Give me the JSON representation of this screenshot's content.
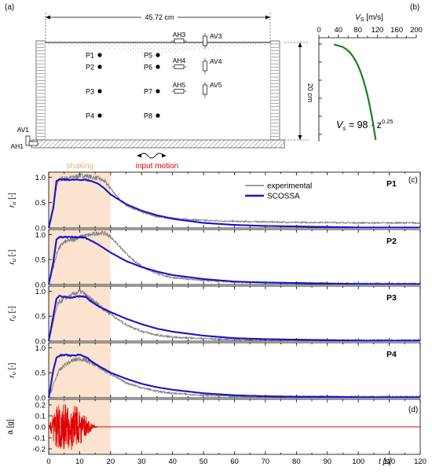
{
  "panels": {
    "a": "(a)",
    "b": "(b)",
    "c": "(c)",
    "d": "(d)"
  },
  "diagram": {
    "width_label": "45.72 cm",
    "height_label": "20 cm",
    "input_motion": "input motion",
    "sensors": {
      "pore_pressure": [
        "P1",
        "P2",
        "P3",
        "P4",
        "P5",
        "P6",
        "P7",
        "P8"
      ],
      "horizontal_acc": [
        "AH1",
        "AH3",
        "AH4",
        "AH5"
      ],
      "vertical_acc": [
        "AV1",
        "AV3",
        "AV4",
        "AV5"
      ]
    }
  },
  "vs_profile": {
    "axis_title_main": "V",
    "axis_title_sub": "S",
    "axis_unit": " [m/s]",
    "ticks": [
      "0",
      "40",
      "80",
      "120",
      "160",
      "200"
    ],
    "equation": {
      "lhs": "V",
      "lhs_sub": "s",
      "rhs": " = 98 · z",
      "exp": "0.25"
    },
    "line_color": "#1a7f1a"
  },
  "colors": {
    "experimental": "#808080",
    "scossa": "#1515c8",
    "acceleration": "#e00000",
    "shaking_band": "#fbe3cf",
    "shaking_label": "#f0a878",
    "input_motion_label": "#e00000"
  },
  "labels": {
    "shaking": "shaking",
    "t_axis": "t [s]",
    "ru_main": "r",
    "ru_sub": "u",
    "ru_unit": " [-]",
    "a_axis": "a [g]"
  },
  "chart_data": [
    {
      "type": "line",
      "name": "P1",
      "xlim": [
        0,
        120
      ],
      "ylim": [
        0,
        1.1
      ],
      "yticks": [
        "0.0",
        "0.5",
        "1.0"
      ],
      "shaking_interval": [
        0,
        20
      ],
      "series": [
        {
          "name": "experimental",
          "x": [
            0,
            1.5,
            2.5,
            3.5,
            5,
            8,
            10,
            12,
            14,
            16,
            18,
            20,
            22,
            25,
            30,
            35,
            40,
            50,
            60,
            70,
            80,
            90,
            100,
            110,
            120
          ],
          "y": [
            0,
            0.45,
            0.8,
            0.97,
            0.98,
            1.0,
            1.03,
            1.03,
            1.0,
            0.98,
            0.92,
            0.78,
            0.62,
            0.45,
            0.31,
            0.23,
            0.19,
            0.15,
            0.13,
            0.12,
            0.11,
            0.11,
            0.1,
            0.1,
            0.1
          ]
        },
        {
          "name": "SCOSSA",
          "x": [
            0,
            1.5,
            2.5,
            3.5,
            6,
            10,
            12,
            14,
            16,
            18,
            20,
            25,
            30,
            35,
            40,
            50,
            60,
            70,
            80,
            90,
            100,
            110,
            120
          ],
          "y": [
            0,
            0.4,
            0.93,
            0.95,
            0.95,
            0.95,
            0.95,
            0.92,
            0.87,
            0.78,
            0.66,
            0.47,
            0.34,
            0.25,
            0.18,
            0.1,
            0.06,
            0.04,
            0.03,
            0.02,
            0.01,
            0.01,
            0.01
          ]
        }
      ]
    },
    {
      "type": "line",
      "name": "P2",
      "xlim": [
        0,
        120
      ],
      "ylim": [
        0,
        1.1
      ],
      "yticks": [
        "0.0",
        "0.5",
        "1.0"
      ],
      "shaking_interval": [
        0,
        20
      ],
      "series": [
        {
          "name": "experimental",
          "x": [
            0,
            1.5,
            3,
            5,
            8,
            10,
            12,
            14,
            16,
            17.5,
            19,
            20,
            22,
            25,
            28,
            32,
            36,
            40,
            50,
            60,
            80,
            100,
            120
          ],
          "y": [
            0,
            0.35,
            0.7,
            0.85,
            0.9,
            0.95,
            0.98,
            1.0,
            1.03,
            1.03,
            1.0,
            0.95,
            0.82,
            0.62,
            0.45,
            0.3,
            0.2,
            0.14,
            0.08,
            0.05,
            0.03,
            0.02,
            0.02
          ]
        },
        {
          "name": "SCOSSA",
          "x": [
            0,
            1.5,
            2.5,
            3.5,
            6,
            10,
            12,
            14,
            16,
            18,
            20,
            25,
            30,
            35,
            40,
            50,
            60,
            70,
            80,
            90,
            100,
            110,
            120
          ],
          "y": [
            0,
            0.45,
            0.9,
            0.95,
            0.95,
            0.95,
            0.93,
            0.87,
            0.8,
            0.72,
            0.64,
            0.47,
            0.35,
            0.26,
            0.19,
            0.11,
            0.06,
            0.04,
            0.03,
            0.02,
            0.01,
            0.01,
            0.01
          ]
        }
      ]
    },
    {
      "type": "line",
      "name": "P3",
      "xlim": [
        0,
        120
      ],
      "ylim": [
        0,
        1.1
      ],
      "yticks": [
        "0.0",
        "0.5",
        "1.0"
      ],
      "shaking_interval": [
        0,
        20
      ],
      "series": [
        {
          "name": "experimental",
          "x": [
            0,
            1.5,
            3,
            5,
            7,
            9,
            10,
            11,
            12,
            14,
            16,
            18,
            20,
            22,
            25,
            30,
            35,
            40,
            50,
            60,
            80,
            100,
            120
          ],
          "y": [
            0,
            0.4,
            0.75,
            0.85,
            0.9,
            0.97,
            1.0,
            0.97,
            0.92,
            0.82,
            0.73,
            0.63,
            0.55,
            0.45,
            0.33,
            0.2,
            0.12,
            0.08,
            0.05,
            0.03,
            0.02,
            0.02,
            0.02
          ]
        },
        {
          "name": "SCOSSA",
          "x": [
            0,
            1.5,
            2.5,
            3.5,
            6,
            8,
            10,
            12,
            14,
            16,
            18,
            20,
            25,
            30,
            35,
            40,
            50,
            60,
            70,
            80,
            90,
            100,
            120
          ],
          "y": [
            0,
            0.5,
            0.85,
            0.9,
            0.88,
            0.87,
            0.9,
            0.88,
            0.78,
            0.7,
            0.64,
            0.58,
            0.45,
            0.34,
            0.25,
            0.19,
            0.11,
            0.06,
            0.04,
            0.03,
            0.02,
            0.01,
            0.01
          ]
        }
      ]
    },
    {
      "type": "line",
      "name": "P4",
      "xlim": [
        0,
        120
      ],
      "ylim": [
        0,
        1.1
      ],
      "yticks": [
        "0.0",
        "0.5",
        "1.0"
      ],
      "shaking_interval": [
        0,
        20
      ],
      "series": [
        {
          "name": "experimental",
          "x": [
            0,
            1.5,
            3,
            5,
            8,
            10,
            12,
            14,
            16,
            18,
            20,
            22,
            25,
            30,
            35,
            40,
            50,
            60,
            80,
            100,
            120
          ],
          "y": [
            0,
            0.25,
            0.5,
            0.65,
            0.75,
            0.78,
            0.75,
            0.7,
            0.62,
            0.55,
            0.48,
            0.4,
            0.3,
            0.2,
            0.13,
            0.09,
            0.05,
            0.03,
            0.02,
            0.02,
            0.02
          ]
        },
        {
          "name": "SCOSSA",
          "x": [
            0,
            1.5,
            2.5,
            3.5,
            6,
            8,
            10,
            12,
            14,
            16,
            18,
            20,
            25,
            30,
            35,
            40,
            50,
            60,
            70,
            80,
            90,
            100,
            120
          ],
          "y": [
            0,
            0.55,
            0.8,
            0.85,
            0.85,
            0.84,
            0.86,
            0.82,
            0.72,
            0.64,
            0.57,
            0.5,
            0.38,
            0.28,
            0.21,
            0.16,
            0.09,
            0.05,
            0.03,
            0.02,
            0.02,
            0.01,
            0.01
          ]
        }
      ]
    },
    {
      "type": "line",
      "name": "acceleration",
      "xlim": [
        0,
        120
      ],
      "ylim": [
        -0.25,
        0.25
      ],
      "yticks": [
        "-0.2",
        "-0.1",
        "0.0",
        "0.1",
        "0.2"
      ],
      "xticks": [
        "0",
        "10",
        "20",
        "30",
        "40",
        "50",
        "60",
        "70",
        "80",
        "90",
        "100",
        "110",
        "120"
      ],
      "shaking_interval": [
        0,
        20
      ],
      "envelope": {
        "x": [
          0,
          1,
          2,
          3,
          5,
          8,
          10,
          12,
          14,
          15,
          16,
          120
        ],
        "amplitude": [
          0,
          0.1,
          0.17,
          0.2,
          0.21,
          0.21,
          0.18,
          0.1,
          0.03,
          0.01,
          0,
          0
        ]
      }
    }
  ]
}
